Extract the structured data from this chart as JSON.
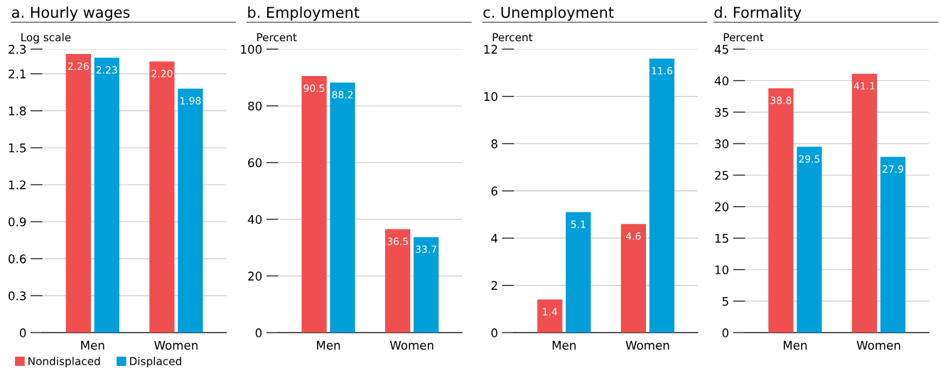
{
  "chart_data": [
    {
      "type": "bar",
      "title": "a. Hourly wages",
      "ylabel": "Log scale",
      "categories": [
        "Men",
        "Women"
      ],
      "series": [
        {
          "name": "Nondisplaced",
          "color": "#ef4f4f",
          "values": [
            2.26,
            2.2
          ]
        },
        {
          "name": "Displaced",
          "color": "#009fda",
          "values": [
            2.23,
            1.98
          ]
        }
      ],
      "value_labels": [
        [
          "2.26",
          "2.20"
        ],
        [
          "2.23",
          "1.98"
        ]
      ],
      "ylim": [
        0,
        2.3
      ],
      "yticks": [
        0,
        0.3,
        0.6,
        0.9,
        1.2,
        1.5,
        1.8,
        2.1,
        2.3
      ],
      "grid": "y",
      "legend": "bottom left"
    },
    {
      "type": "bar",
      "title": "b. Employment",
      "ylabel": "Percent",
      "categories": [
        "Men",
        "Women"
      ],
      "series": [
        {
          "color": "#ef4f4f",
          "values": [
            90.5,
            36.5
          ]
        },
        {
          "color": "#009fda",
          "values": [
            88.2,
            33.7
          ]
        }
      ],
      "data_labels": true,
      "ylim": [
        0,
        100
      ],
      "yticks": [
        0,
        20,
        40,
        60,
        80,
        100
      ],
      "grid": "y"
    },
    {
      "type": "bar",
      "title": "c. Unemployment",
      "ylabel": "Percent",
      "categories": [
        "Men",
        "Women"
      ],
      "series": [
        {
          "color": "#ef4f4f",
          "values": [
            1.4,
            4.6
          ]
        },
        {
          "color": "#009fda",
          "values": [
            5.1,
            11.6
          ]
        }
      ],
      "data_labels": true,
      "ylim": [
        0,
        12
      ],
      "yticks": [
        0,
        2,
        4,
        6,
        8,
        10,
        12
      ],
      "grid": "y"
    },
    {
      "type": "bar",
      "title": "d. Formality",
      "ylabel": "Percent",
      "categories": [
        "Men",
        "Women"
      ],
      "series": [
        {
          "color": "#ef4f4f",
          "values": [
            38.8,
            41.1
          ]
        },
        {
          "color": "#009fda",
          "values": [
            29.5,
            27.9
          ]
        }
      ],
      "data_labels": true,
      "ylim": [
        0,
        45
      ],
      "yticks": [
        0,
        5,
        10,
        15,
        20,
        25,
        30,
        35,
        40,
        45
      ],
      "grid": "y"
    }
  ]
}
